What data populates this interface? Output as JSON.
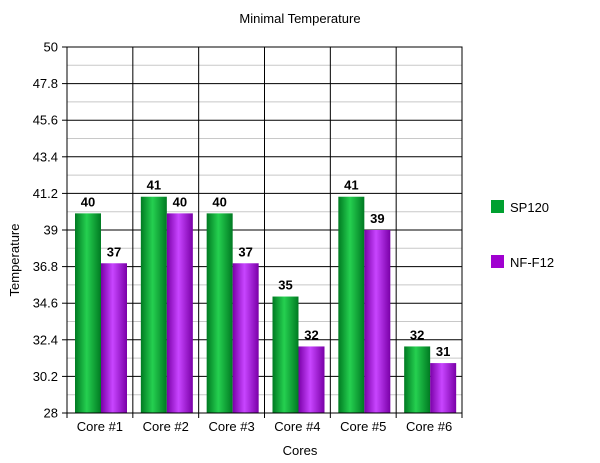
{
  "chart_data": {
    "type": "bar",
    "title": "Minimal Temperature",
    "xlabel": "Cores",
    "ylabel": "Temperature",
    "categories": [
      "Core #1",
      "Core #2",
      "Core #3",
      "Core #4",
      "Core #5",
      "Core #6"
    ],
    "series": [
      {
        "name": "SP120",
        "color": "#00a030",
        "values": [
          40,
          41,
          40,
          35,
          41,
          32
        ]
      },
      {
        "name": "NF-F12",
        "color": "#a000d0",
        "values": [
          37,
          40,
          37,
          32,
          39,
          31
        ]
      }
    ],
    "ylim": [
      28,
      50
    ],
    "yticks": [
      "28",
      "30.2",
      "32.4",
      "34.6",
      "36.8",
      "39",
      "41.2",
      "43.4",
      "45.6",
      "47.8",
      "50"
    ],
    "grid": true,
    "legend": "right"
  }
}
